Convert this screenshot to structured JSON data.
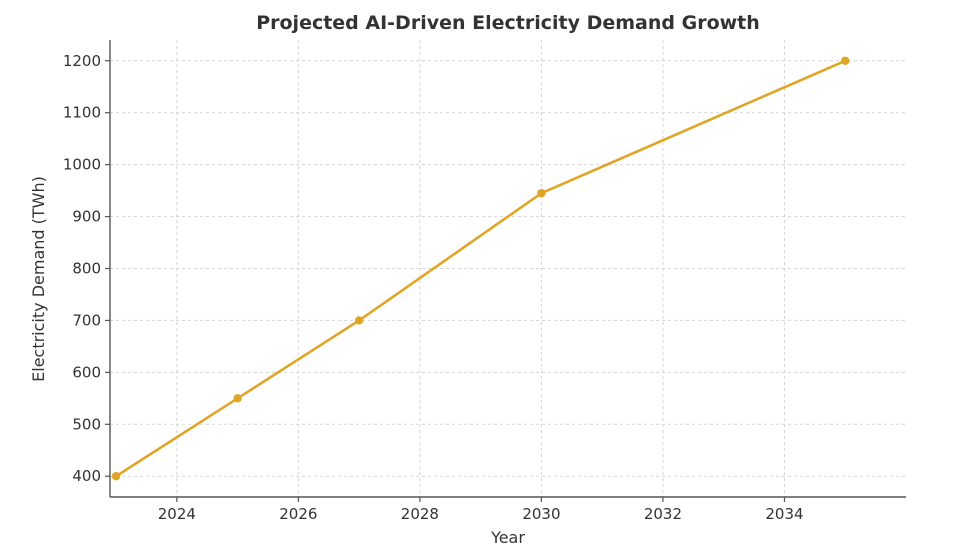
{
  "chart_data": {
    "type": "line",
    "title": "Projected AI-Driven Electricity Demand Growth",
    "xlabel": "Year",
    "ylabel": "Electricity Demand (TWh)",
    "xlim": [
      2022.9,
      2036.0
    ],
    "ylim": [
      360,
      1240
    ],
    "xticks": [
      2024,
      2026,
      2028,
      2030,
      2032,
      2034
    ],
    "yticks": [
      400,
      500,
      600,
      700,
      800,
      900,
      1000,
      1100,
      1200
    ],
    "grid": true,
    "series": [
      {
        "color": "#e0a526",
        "marker": "circle",
        "points": [
          {
            "x": 2023,
            "y": 400
          },
          {
            "x": 2025,
            "y": 550
          },
          {
            "x": 2027,
            "y": 700
          },
          {
            "x": 2030,
            "y": 945
          },
          {
            "x": 2035,
            "y": 1200
          }
        ]
      }
    ]
  }
}
